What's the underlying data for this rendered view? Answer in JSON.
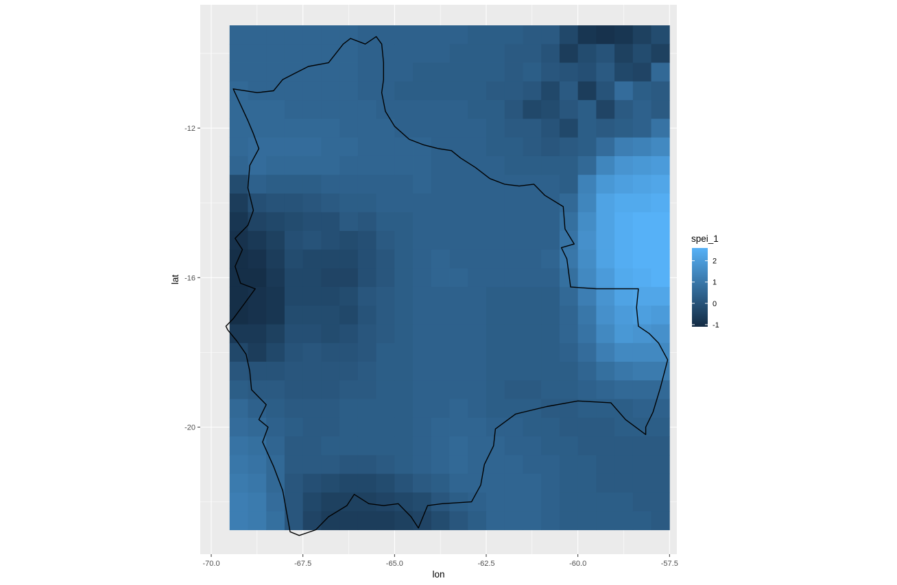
{
  "chart_data": {
    "type": "heatmap",
    "title": "",
    "xlabel": "lon",
    "ylabel": "lat",
    "xlim": [
      -70.3,
      -57.3
    ],
    "ylim": [
      -23.4,
      -8.7
    ],
    "grid": true,
    "x_ticks": [
      -70.0,
      -67.5,
      -65.0,
      -62.5,
      -60.0,
      -57.5
    ],
    "x_tick_labels": [
      "-70.0",
      "-67.5",
      "-65.0",
      "-62.5",
      "-60.0",
      "-57.5"
    ],
    "y_ticks": [
      -12,
      -16,
      -20
    ],
    "y_tick_labels": [
      "-12",
      "-16",
      "-20"
    ],
    "legend": {
      "title": "spei_1",
      "position": "right",
      "ticks": [
        2,
        1,
        0,
        -1
      ],
      "tick_labels": [
        "2",
        "1",
        "0",
        "-1"
      ],
      "range": [
        -1.1,
        2.6
      ],
      "low_color": "#132B43",
      "high_color": "#56B1F7"
    },
    "fill_variable": "spei_1",
    "grid_extent": {
      "lon_min": -69.5,
      "lon_max": -57.5,
      "lat_min": -22.75,
      "lat_max": -9.25
    },
    "cell_size_deg": 0.5,
    "row_lats": [
      -9.5,
      -10.0,
      -10.5,
      -11.0,
      -11.5,
      -12.0,
      -12.5,
      -13.0,
      -13.5,
      -14.0,
      -14.5,
      -15.0,
      -15.5,
      -16.0,
      -16.5,
      -17.0,
      -17.5,
      -18.0,
      -18.5,
      -19.0,
      -19.5,
      -20.0,
      -20.5,
      -21.0,
      -21.5,
      -22.0,
      -22.5
    ],
    "col_lons": [
      -69.25,
      -68.75,
      -68.25,
      -67.75,
      -67.25,
      -66.75,
      -66.25,
      -65.75,
      -65.25,
      -64.75,
      -64.25,
      -63.75,
      -63.25,
      -62.75,
      -62.25,
      -61.75,
      -61.25,
      -60.75,
      -60.25,
      -59.75,
      -59.25,
      -58.75,
      -58.25,
      -57.75
    ],
    "values": [
      [
        0.5,
        0.5,
        0.5,
        0.5,
        0.5,
        0.5,
        0.5,
        0.4,
        0.4,
        0.4,
        0.4,
        0.4,
        0.4,
        0.3,
        0.3,
        0.3,
        0.2,
        0.2,
        -0.3,
        -0.8,
        -0.9,
        -0.8,
        -0.5,
        -0.2
      ],
      [
        0.5,
        0.5,
        0.5,
        0.5,
        0.5,
        0.5,
        0.5,
        0.4,
        0.4,
        0.4,
        0.4,
        0.4,
        0.3,
        0.3,
        0.3,
        0.2,
        0.2,
        0.0,
        -0.6,
        -0.2,
        0.0,
        -0.5,
        -0.2,
        -0.5
      ],
      [
        0.5,
        0.5,
        0.5,
        0.5,
        0.5,
        0.5,
        0.5,
        0.4,
        0.4,
        0.4,
        0.3,
        0.3,
        0.3,
        0.3,
        0.3,
        0.2,
        0.3,
        0.1,
        0.0,
        -0.1,
        0.2,
        -0.3,
        -0.4,
        0.6
      ],
      [
        0.6,
        0.5,
        0.5,
        0.5,
        0.5,
        0.5,
        0.5,
        0.4,
        0.4,
        0.3,
        0.3,
        0.3,
        0.3,
        0.3,
        0.2,
        0.2,
        0.1,
        -0.3,
        0.2,
        -0.6,
        0.0,
        0.7,
        0.3,
        0.2
      ],
      [
        0.6,
        0.6,
        0.6,
        0.5,
        0.5,
        0.5,
        0.5,
        0.5,
        0.4,
        0.4,
        0.4,
        0.4,
        0.4,
        0.3,
        0.3,
        0.1,
        -0.3,
        -0.2,
        0.1,
        0.3,
        -0.4,
        0.2,
        0.4,
        0.2
      ],
      [
        0.6,
        0.6,
        0.6,
        0.6,
        0.6,
        0.6,
        0.5,
        0.5,
        0.5,
        0.4,
        0.4,
        0.4,
        0.4,
        0.4,
        0.3,
        0.2,
        0.2,
        0.0,
        -0.3,
        0.3,
        0.2,
        0.3,
        0.4,
        0.9
      ],
      [
        0.6,
        0.7,
        0.7,
        0.7,
        0.7,
        0.6,
        0.6,
        0.5,
        0.5,
        0.5,
        0.5,
        0.4,
        0.4,
        0.4,
        0.3,
        0.3,
        0.2,
        0.1,
        0.2,
        0.3,
        0.7,
        1.2,
        1.3,
        1.5
      ],
      [
        0.5,
        0.7,
        0.6,
        0.6,
        0.6,
        0.6,
        0.5,
        0.5,
        0.5,
        0.5,
        0.5,
        0.4,
        0.4,
        0.4,
        0.4,
        0.3,
        0.3,
        0.3,
        0.3,
        0.6,
        1.4,
        1.8,
        1.9,
        2.0
      ],
      [
        -0.2,
        0.4,
        0.3,
        0.3,
        0.3,
        0.4,
        0.4,
        0.4,
        0.4,
        0.4,
        0.5,
        0.4,
        0.4,
        0.4,
        0.4,
        0.4,
        0.4,
        0.4,
        0.3,
        1.3,
        1.9,
        2.1,
        2.2,
        2.3
      ],
      [
        -0.6,
        -0.1,
        0.0,
        0.0,
        0.1,
        0.2,
        0.3,
        0.3,
        0.4,
        0.4,
        0.4,
        0.4,
        0.4,
        0.4,
        0.4,
        0.4,
        0.4,
        0.4,
        0.6,
        1.4,
        2.2,
        2.4,
        2.4,
        2.5
      ],
      [
        -0.8,
        -0.4,
        -0.3,
        -0.2,
        -0.1,
        -0.1,
        0.2,
        0.1,
        0.3,
        0.3,
        0.4,
        0.4,
        0.4,
        0.4,
        0.4,
        0.4,
        0.4,
        0.4,
        0.8,
        1.6,
        2.2,
        2.5,
        2.6,
        2.6
      ],
      [
        -0.9,
        -0.7,
        -0.5,
        -0.1,
        0.0,
        -0.1,
        -0.2,
        -0.1,
        0.2,
        0.3,
        0.4,
        0.4,
        0.4,
        0.4,
        0.4,
        0.4,
        0.4,
        0.4,
        0.9,
        1.7,
        2.2,
        2.5,
        2.6,
        2.6
      ],
      [
        -1.0,
        -0.9,
        -0.6,
        -0.2,
        -0.3,
        -0.3,
        -0.3,
        -0.1,
        0.1,
        0.3,
        0.4,
        0.5,
        0.4,
        0.4,
        0.4,
        0.4,
        0.4,
        0.5,
        1.0,
        1.6,
        2.2,
        2.5,
        2.6,
        2.6
      ],
      [
        -1.0,
        -1.0,
        -0.7,
        -0.3,
        -0.3,
        -0.4,
        -0.4,
        -0.1,
        0.1,
        0.3,
        0.4,
        0.5,
        0.5,
        0.4,
        0.4,
        0.4,
        0.4,
        0.4,
        0.8,
        1.5,
        2.0,
        2.4,
        2.5,
        2.6
      ],
      [
        -1.0,
        -0.9,
        -0.8,
        -0.3,
        -0.3,
        -0.3,
        -0.2,
        0.1,
        0.2,
        0.3,
        0.4,
        0.4,
        0.4,
        0.4,
        0.3,
        0.3,
        0.3,
        0.3,
        0.6,
        1.2,
        1.8,
        2.2,
        2.3,
        2.3
      ],
      [
        -1.0,
        -0.9,
        -0.8,
        -0.2,
        -0.2,
        -0.2,
        -0.3,
        0.0,
        0.2,
        0.3,
        0.4,
        0.4,
        0.4,
        0.4,
        0.3,
        0.3,
        0.3,
        0.3,
        0.5,
        1.0,
        1.7,
        2.0,
        2.1,
        2.0
      ],
      [
        -0.7,
        -0.7,
        -0.5,
        -0.1,
        -0.1,
        -0.2,
        -0.1,
        0.1,
        0.2,
        0.3,
        0.4,
        0.4,
        0.4,
        0.4,
        0.3,
        0.3,
        0.3,
        0.3,
        0.5,
        0.9,
        1.5,
        1.9,
        1.8,
        1.7
      ],
      [
        -0.3,
        -0.6,
        -0.3,
        0.0,
        0.1,
        0.0,
        0.0,
        0.1,
        0.3,
        0.3,
        0.4,
        0.4,
        0.4,
        0.4,
        0.3,
        0.3,
        0.3,
        0.3,
        0.4,
        0.7,
        1.2,
        1.5,
        1.5,
        1.5
      ],
      [
        0.1,
        0.0,
        0.0,
        0.1,
        0.1,
        0.1,
        0.1,
        0.2,
        0.3,
        0.3,
        0.4,
        0.4,
        0.4,
        0.4,
        0.3,
        0.3,
        0.3,
        0.3,
        0.3,
        0.5,
        0.8,
        1.0,
        1.1,
        1.1
      ],
      [
        0.3,
        0.2,
        0.2,
        0.1,
        0.1,
        0.1,
        0.2,
        0.2,
        0.3,
        0.3,
        0.4,
        0.4,
        0.4,
        0.4,
        0.3,
        0.2,
        0.2,
        0.3,
        0.3,
        0.4,
        0.5,
        0.6,
        0.6,
        0.6
      ],
      [
        0.6,
        0.4,
        0.3,
        0.2,
        0.2,
        0.2,
        0.3,
        0.3,
        0.3,
        0.3,
        0.4,
        0.4,
        0.5,
        0.4,
        0.3,
        0.3,
        0.3,
        0.2,
        0.2,
        0.3,
        0.3,
        0.3,
        0.4,
        0.4
      ],
      [
        0.7,
        0.6,
        0.4,
        0.3,
        0.2,
        0.2,
        0.3,
        0.3,
        0.3,
        0.3,
        0.4,
        0.5,
        0.5,
        0.5,
        0.4,
        0.4,
        0.3,
        0.3,
        0.2,
        0.2,
        0.2,
        0.3,
        0.3,
        0.3
      ],
      [
        0.9,
        0.8,
        0.5,
        0.2,
        0.2,
        0.3,
        0.3,
        0.3,
        0.3,
        0.3,
        0.4,
        0.5,
        0.6,
        0.5,
        0.5,
        0.4,
        0.4,
        0.3,
        0.3,
        0.2,
        0.2,
        0.2,
        0.2,
        0.2
      ],
      [
        1.0,
        0.9,
        0.6,
        0.2,
        0.2,
        0.2,
        0.1,
        0.1,
        0.2,
        0.3,
        0.4,
        0.5,
        0.6,
        0.5,
        0.5,
        0.5,
        0.4,
        0.4,
        0.3,
        0.3,
        0.2,
        0.2,
        0.2,
        0.2
      ],
      [
        1.1,
        1.0,
        0.6,
        0.1,
        -0.1,
        -0.2,
        -0.3,
        -0.3,
        -0.2,
        0.0,
        0.2,
        0.3,
        0.5,
        0.5,
        0.5,
        0.5,
        0.5,
        0.4,
        0.3,
        0.3,
        0.2,
        0.2,
        0.2,
        0.2
      ],
      [
        1.2,
        1.1,
        0.7,
        0.1,
        -0.3,
        -0.5,
        -0.5,
        -0.5,
        -0.4,
        -0.3,
        -0.2,
        0.1,
        0.3,
        0.4,
        0.5,
        0.5,
        0.5,
        0.4,
        0.3,
        0.3,
        0.3,
        0.3,
        0.2,
        0.2
      ],
      [
        1.2,
        1.1,
        0.8,
        0.1,
        -0.4,
        -0.6,
        -0.6,
        -0.6,
        -0.6,
        -0.5,
        -0.4,
        -0.2,
        0.1,
        0.3,
        0.5,
        0.5,
        0.5,
        0.4,
        0.3,
        0.3,
        0.3,
        0.3,
        0.3,
        0.2
      ]
    ],
    "outline": {
      "name": "Bolivia",
      "stroke": "#000000",
      "points": [
        [
          -69.4,
          -10.95
        ],
        [
          -68.75,
          -11.05
        ],
        [
          -68.3,
          -11.0
        ],
        [
          -68.05,
          -10.7
        ],
        [
          -67.75,
          -10.55
        ],
        [
          -67.35,
          -10.35
        ],
        [
          -66.8,
          -10.25
        ],
        [
          -66.6,
          -10.0
        ],
        [
          -66.4,
          -9.75
        ],
        [
          -66.2,
          -9.6
        ],
        [
          -65.8,
          -9.75
        ],
        [
          -65.5,
          -9.55
        ],
        [
          -65.35,
          -9.75
        ],
        [
          -65.3,
          -10.25
        ],
        [
          -65.3,
          -10.7
        ],
        [
          -65.35,
          -11.05
        ],
        [
          -65.25,
          -11.55
        ],
        [
          -65.0,
          -11.95
        ],
        [
          -64.6,
          -12.3
        ],
        [
          -64.2,
          -12.45
        ],
        [
          -63.8,
          -12.55
        ],
        [
          -63.45,
          -12.6
        ],
        [
          -63.2,
          -12.8
        ],
        [
          -62.8,
          -13.05
        ],
        [
          -62.4,
          -13.35
        ],
        [
          -62.0,
          -13.5
        ],
        [
          -61.6,
          -13.55
        ],
        [
          -61.2,
          -13.5
        ],
        [
          -60.9,
          -13.8
        ],
        [
          -60.4,
          -14.1
        ],
        [
          -60.35,
          -14.7
        ],
        [
          -60.1,
          -15.1
        ],
        [
          -60.45,
          -15.2
        ],
        [
          -60.3,
          -15.5
        ],
        [
          -60.2,
          -16.25
        ],
        [
          -59.5,
          -16.3
        ],
        [
          -58.8,
          -16.3
        ],
        [
          -58.35,
          -16.3
        ],
        [
          -58.4,
          -16.8
        ],
        [
          -58.35,
          -17.3
        ],
        [
          -58.05,
          -17.5
        ],
        [
          -57.8,
          -17.75
        ],
        [
          -57.55,
          -18.2
        ],
        [
          -57.75,
          -18.95
        ],
        [
          -57.95,
          -19.6
        ],
        [
          -58.15,
          -20.0
        ],
        [
          -58.15,
          -20.2
        ],
        [
          -58.7,
          -19.8
        ],
        [
          -59.1,
          -19.35
        ],
        [
          -60.0,
          -19.3
        ],
        [
          -60.85,
          -19.45
        ],
        [
          -61.7,
          -19.65
        ],
        [
          -62.25,
          -20.05
        ],
        [
          -62.3,
          -20.5
        ],
        [
          -62.55,
          -21.0
        ],
        [
          -62.65,
          -21.55
        ],
        [
          -62.9,
          -22.0
        ],
        [
          -63.7,
          -22.05
        ],
        [
          -64.1,
          -22.1
        ],
        [
          -64.35,
          -22.7
        ],
        [
          -64.55,
          -22.4
        ],
        [
          -64.9,
          -22.05
        ],
        [
          -65.3,
          -22.1
        ],
        [
          -65.7,
          -22.05
        ],
        [
          -66.1,
          -21.8
        ],
        [
          -66.3,
          -22.1
        ],
        [
          -66.8,
          -22.4
        ],
        [
          -67.15,
          -22.75
        ],
        [
          -67.6,
          -22.9
        ],
        [
          -67.85,
          -22.8
        ],
        [
          -68.05,
          -21.7
        ],
        [
          -68.3,
          -21.05
        ],
        [
          -68.6,
          -20.4
        ],
        [
          -68.45,
          -20.0
        ],
        [
          -68.7,
          -19.8
        ],
        [
          -68.5,
          -19.4
        ],
        [
          -68.9,
          -19.0
        ],
        [
          -68.95,
          -18.5
        ],
        [
          -69.05,
          -18.05
        ],
        [
          -69.3,
          -17.7
        ],
        [
          -69.55,
          -17.4
        ],
        [
          -69.6,
          -17.3
        ],
        [
          -69.4,
          -17.1
        ],
        [
          -69.1,
          -16.7
        ],
        [
          -68.8,
          -16.3
        ],
        [
          -69.2,
          -16.15
        ],
        [
          -69.35,
          -15.7
        ],
        [
          -69.15,
          -15.25
        ],
        [
          -69.35,
          -14.95
        ],
        [
          -69.0,
          -14.6
        ],
        [
          -68.85,
          -14.2
        ],
        [
          -69.0,
          -13.6
        ],
        [
          -68.95,
          -13.0
        ],
        [
          -68.7,
          -12.55
        ],
        [
          -68.85,
          -12.15
        ],
        [
          -69.0,
          -11.8
        ],
        [
          -69.4,
          -10.95
        ]
      ]
    }
  }
}
